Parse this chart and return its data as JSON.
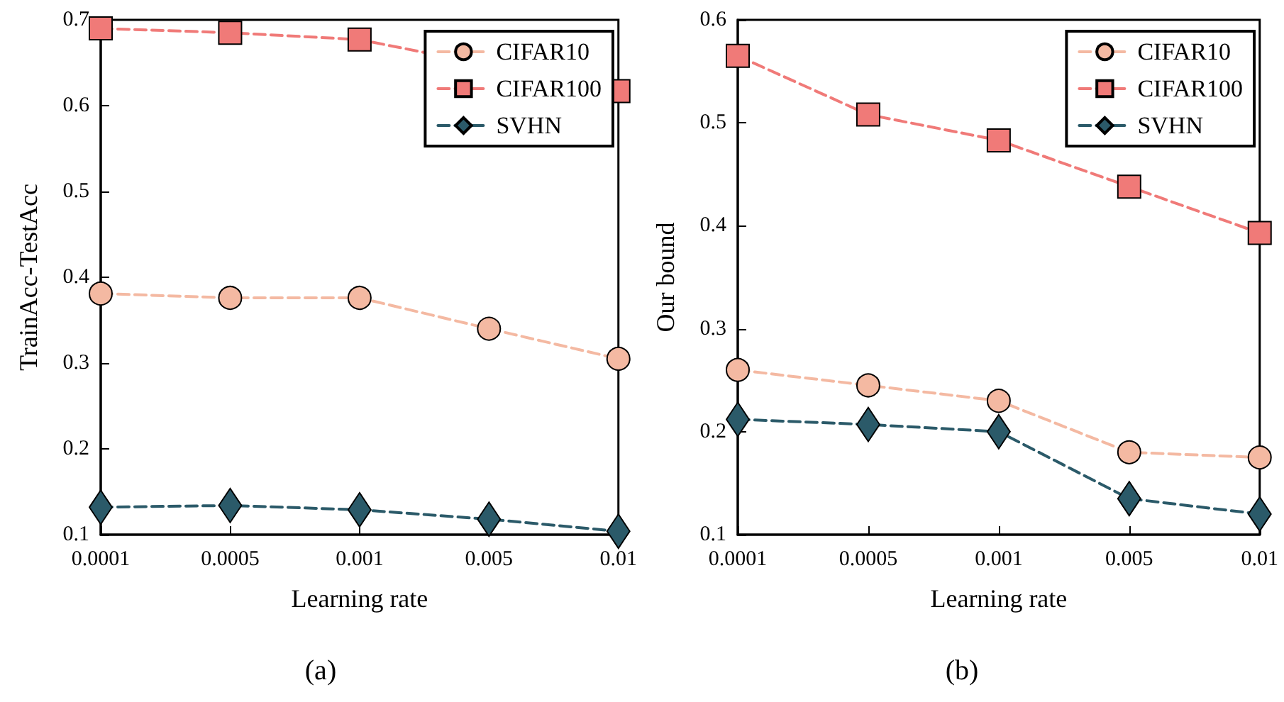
{
  "chart_data": [
    {
      "type": "line",
      "xlabel": "Learning rate",
      "ylabel": "TrainAcc-TestAcc",
      "annotations": [
        "(a)"
      ],
      "categories": [
        "0.0001",
        "0.0005",
        "0.001",
        "0.005",
        "0.01"
      ],
      "ylim": [
        0.1,
        0.7
      ],
      "yticks": [
        0.1,
        0.2,
        0.3,
        0.4,
        0.5,
        0.6,
        0.7
      ],
      "grid": false,
      "legend": "top right",
      "line_style": "dashed",
      "series": [
        {
          "name": "CIFAR10",
          "color": "#f4b9a2",
          "marker": "circle",
          "values": [
            0.381,
            0.376,
            0.376,
            0.34,
            0.305
          ]
        },
        {
          "name": "CIFAR100",
          "color": "#f07a78",
          "marker": "square",
          "values": [
            0.69,
            0.685,
            0.677,
            null,
            0.617
          ]
        },
        {
          "name": "SVHN",
          "color": "#2b5a69",
          "marker": "diamond",
          "values": [
            0.132,
            0.134,
            0.129,
            0.118,
            0.104
          ]
        }
      ]
    },
    {
      "type": "line",
      "xlabel": "Learning rate",
      "ylabel": "Our bound",
      "annotations": [
        "(b)"
      ],
      "categories": [
        "0.0001",
        "0.0005",
        "0.001",
        "0.005",
        "0.01"
      ],
      "ylim": [
        0.1,
        0.6
      ],
      "yticks": [
        0.1,
        0.2,
        0.3,
        0.4,
        0.5,
        0.6
      ],
      "grid": false,
      "legend": "top right",
      "line_style": "dashed",
      "series": [
        {
          "name": "CIFAR10",
          "color": "#f4b9a2",
          "marker": "circle",
          "values": [
            0.26,
            0.245,
            0.23,
            0.18,
            0.175
          ]
        },
        {
          "name": "CIFAR100",
          "color": "#f07a78",
          "marker": "square",
          "values": [
            0.565,
            0.508,
            0.483,
            0.438,
            0.393
          ]
        },
        {
          "name": "SVHN",
          "color": "#2b5a69",
          "marker": "diamond",
          "values": [
            0.212,
            0.207,
            0.2,
            0.135,
            0.12
          ]
        }
      ]
    }
  ]
}
